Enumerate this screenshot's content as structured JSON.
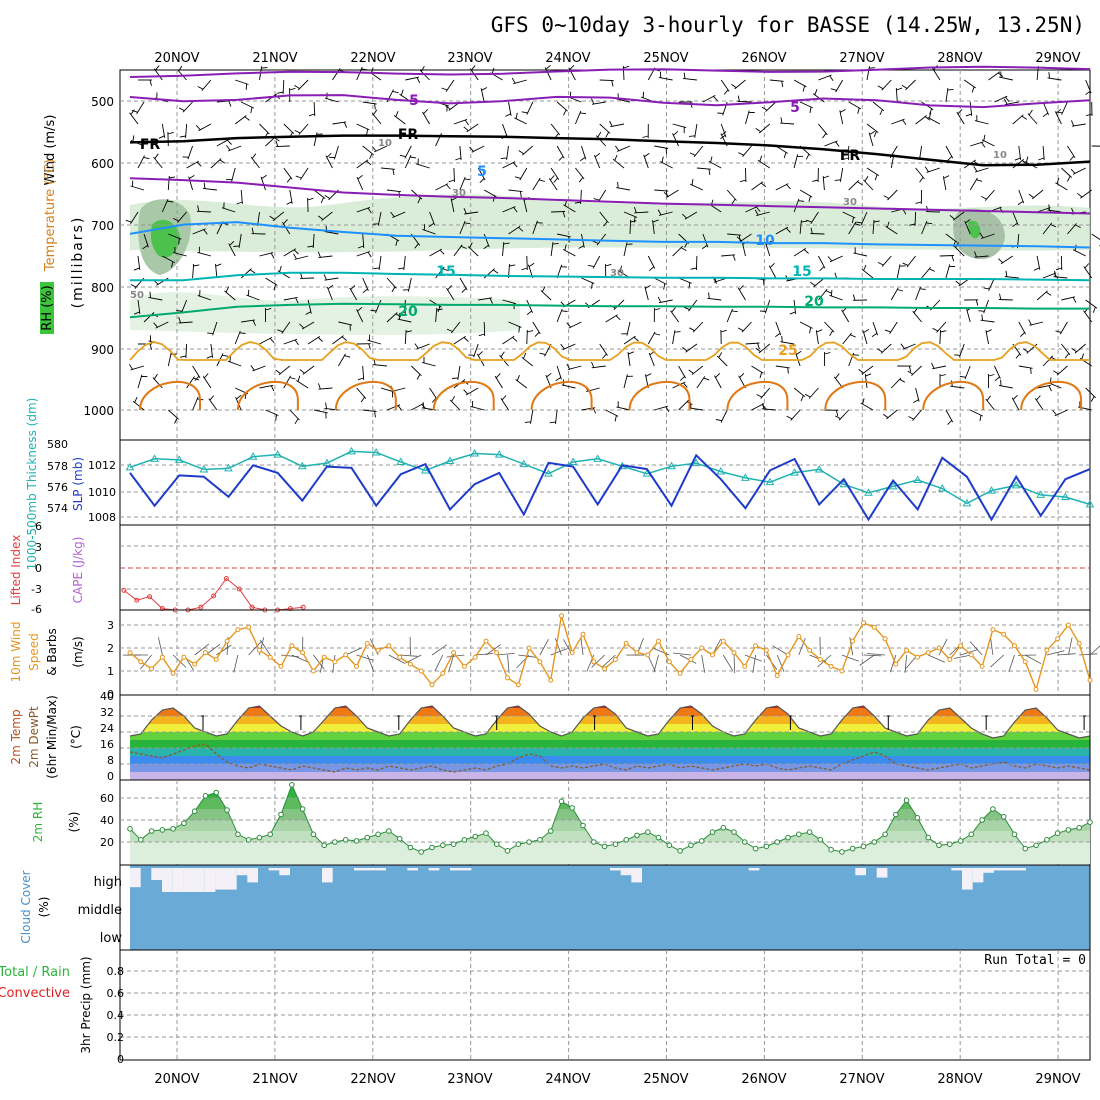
{
  "title": "GFS 0~10day 3-hourly for BASSE (14.25W, 13.25N)",
  "dates": [
    "20NOV",
    "21NOV",
    "22NOV",
    "23NOV",
    "24NOV",
    "25NOV",
    "26NOV",
    "27NOV",
    "28NOV",
    "29NOV"
  ],
  "colors": {
    "background": "#ffffff",
    "grid": "#999999",
    "text": "#000000",
    "temp_5": "#8a1eb4",
    "temp_10": "#1e90ff",
    "temp_15": "#00b4b4",
    "temp_20": "#00aa6e",
    "temp_25": "#e6a01e",
    "temp_30": "#e07814",
    "freezing": "#000000",
    "rh_fill": "#dcefdc",
    "thickness": "#20b2b2",
    "slp": "#1e3cc8",
    "lifted_index": "#e04040",
    "wind10m": "#e6961e",
    "dewpoint": "#8b5a2b",
    "rh2m": "#2db43c",
    "cloud_cover": "#6aaad6",
    "cloud_clear": "#f4f0f8",
    "precip_total": "#2db43c",
    "precip_convective": "#e02020"
  },
  "panels": {
    "upper": {
      "labels": [
        "Wind (m/s)",
        "Temperature (°C)",
        "RH (%)",
        "(millibars)"
      ],
      "yticks": [
        "500",
        "600",
        "700",
        "800",
        "900",
        "1000"
      ],
      "contour_labels": [
        "5",
        "5",
        "5",
        "10",
        "15",
        "15",
        "20",
        "20",
        "25",
        "10",
        "30",
        "30",
        "30",
        "50",
        "FR",
        "FR",
        "FR",
        "10"
      ]
    },
    "thickness": {
      "label_left": "1000-500mb Thickness (dm)",
      "label_right": "SLP (mb)",
      "yticks_left": [
        "580",
        "578",
        "576",
        "574"
      ],
      "yticks_right": [
        "1012",
        "1010",
        "1008"
      ]
    },
    "cape": {
      "label_left": "Lifted Index",
      "label_right": "CAPE (J/kg)",
      "yticks": [
        "6",
        "3",
        "0",
        "-3",
        "-6"
      ]
    },
    "wind10m": {
      "labels": [
        "10m Wind",
        "Speed",
        "& Barbs",
        "(m/s)"
      ],
      "yticks": [
        "3",
        "2",
        "1",
        "0"
      ]
    },
    "temp2m": {
      "labels": [
        "2m Temp",
        "2m DewPt",
        "(6hr Min/Max)",
        "(°C)"
      ],
      "yticks": [
        "40",
        "32",
        "24",
        "16",
        "8",
        "0"
      ]
    },
    "rh2m": {
      "labels": [
        "2m RH",
        "(%)"
      ],
      "yticks": [
        "60",
        "40",
        "20"
      ]
    },
    "cloud": {
      "labels": [
        "Cloud Cover",
        "(%)"
      ],
      "levels": [
        "high",
        "middle",
        "low"
      ]
    },
    "precip": {
      "labels": [
        "Total / Rain",
        "Convective",
        "3hr Precip (mm)"
      ],
      "yticks": [
        "0.8",
        "0.6",
        "0.4",
        "0.2",
        "0"
      ],
      "run_total": "Run Total = 0"
    }
  },
  "chart_data": [
    {
      "type": "heatmap",
      "title": "GFS 0~10day 3-hourly for BASSE (14.25W, 13.25N)",
      "ylabel": "millibars",
      "ylim": [
        1000,
        450
      ],
      "series": [
        {
          "name": "Temperature 5°C isotherm (mb)",
          "values": [
            625,
            628,
            632,
            640,
            648,
            652,
            655,
            657,
            660,
            663,
            666,
            668,
            670,
            672,
            674,
            676,
            678,
            680,
            682
          ]
        },
        {
          "name": "Temperature 10°C isotherm (mb)",
          "values": [
            715,
            700,
            696,
            705,
            712,
            718,
            720,
            722,
            724,
            726,
            728,
            728,
            730,
            730,
            732,
            733,
            734,
            735,
            737
          ]
        },
        {
          "name": "Temperature 15°C isotherm (mb)",
          "values": [
            790,
            790,
            782,
            778,
            778,
            780,
            781,
            783,
            784,
            785,
            786,
            786,
            787,
            787,
            788,
            788,
            788,
            789,
            790
          ]
        },
        {
          "name": "Temperature 20°C isotherm (mb)",
          "values": [
            850,
            842,
            833,
            830,
            828,
            829,
            830,
            830,
            831,
            832,
            832,
            833,
            833,
            834,
            834,
            835,
            835,
            836,
            836
          ]
        },
        {
          "name": "Freezing level (mb)",
          "values": [
            567,
            565,
            560,
            558,
            556,
            556,
            557,
            558,
            560,
            562,
            565,
            568,
            572,
            578,
            586,
            595,
            604,
            603,
            598
          ]
        }
      ]
    },
    {
      "type": "line",
      "ylabel": "Thickness (dm)",
      "x": [
        "19NOV18",
        "20NOV00",
        "20NOV06",
        "20NOV12",
        "20NOV18",
        "21NOV00",
        "21NOV06",
        "21NOV12",
        "21NOV18",
        "22NOV00",
        "22NOV06",
        "22NOV12",
        "22NOV18",
        "23NOV00",
        "23NOV06",
        "23NOV12",
        "23NOV18",
        "24NOV00",
        "24NOV06",
        "24NOV12",
        "24NOV18",
        "25NOV00",
        "25NOV06",
        "25NOV12",
        "25NOV18",
        "26NOV00",
        "26NOV06",
        "26NOV12",
        "26NOV18",
        "27NOV00",
        "27NOV06",
        "27NOV12",
        "27NOV18",
        "28NOV00",
        "28NOV06",
        "28NOV12",
        "28NOV18",
        "29NOV00",
        "29NOV06",
        "29NOV12"
      ],
      "series": [
        {
          "name": "1000-500mb Thickness (dm)",
          "values": [
            577.8,
            578.6,
            578.5,
            577.6,
            577.7,
            578.8,
            579.0,
            577.9,
            578.2,
            579.3,
            579.2,
            578.3,
            577.5,
            578.4,
            579.1,
            579.0,
            578.1,
            577.2,
            578.3,
            578.6,
            577.9,
            577.2,
            577.9,
            578.2,
            577.4,
            576.8,
            576.4,
            577.3,
            577.6,
            576.2,
            575.4,
            576.0,
            576.6,
            575.8,
            574.4,
            575.6,
            576.1,
            575.2,
            575.0,
            574.3
          ]
        },
        {
          "name": "SLP (mb)",
          "values": [
            1011.5,
            1008.9,
            1011.3,
            1011.2,
            1009.6,
            1012.1,
            1011.5,
            1009.3,
            1012.0,
            1011.9,
            1008.9,
            1011.4,
            1012.2,
            1008.6,
            1010.6,
            1011.5,
            1008.2,
            1012.3,
            1012.0,
            1009.0,
            1012.1,
            1011.8,
            1008.9,
            1012.9,
            1011.0,
            1008.7,
            1011.7,
            1012.6,
            1009.0,
            1011.0,
            1007.8,
            1010.9,
            1008.6,
            1012.7,
            1011.2,
            1007.8,
            1011.2,
            1008.1,
            1011.0,
            1011.8
          ]
        }
      ],
      "ylim": [
        573,
        580
      ]
    },
    {
      "type": "line",
      "ylabel": "Lifted Index",
      "x": [
        "19NOV12",
        "19NOV15",
        "19NOV18",
        "19NOV21",
        "20NOV00",
        "20NOV03",
        "20NOV06",
        "20NOV09",
        "20NOV12",
        "20NOV15",
        "20NOV18",
        "21NOV00",
        "21NOV03",
        "21NOV06",
        "21NOV09"
      ],
      "series": [
        {
          "name": "Lifted Index",
          "values": [
            3.2,
            4.6,
            4.1,
            5.8,
            6.0,
            6.0,
            5.6,
            4.0,
            1.5,
            3.0,
            5.6,
            6.0,
            6.0,
            5.8,
            5.6
          ]
        }
      ],
      "ylim": [
        6,
        -6
      ]
    },
    {
      "type": "line",
      "ylabel": "10m Wind Speed (m/s)",
      "series": [
        {
          "name": "10m Wind Speed",
          "values": [
            1.8,
            1.4,
            1.1,
            1.6,
            0.9,
            1.6,
            1.3,
            1.8,
            1.5,
            2.3,
            2.8,
            2.9,
            1.9,
            1.6,
            1.2,
            2.1,
            1.8,
            1.0,
            1.6,
            1.4,
            1.7,
            1.2,
            2.2,
            1.9,
            2.1,
            1.6,
            1.3,
            1.0,
            0.4,
            0.9,
            1.8,
            1.2,
            1.6,
            2.3,
            1.8,
            0.7,
            0.4,
            2.0,
            1.4,
            0.6,
            3.4,
            1.8,
            2.6,
            1.4,
            1.1,
            1.5,
            2.2,
            1.8,
            1.7,
            2.3,
            1.4,
            0.9,
            1.5,
            2.0,
            1.7,
            2.3,
            1.8,
            1.2,
            2.1,
            1.9,
            0.8,
            1.7,
            2.5,
            1.9,
            1.5,
            1.2,
            1.0,
            2.3,
            3.1,
            2.9,
            2.4,
            1.3,
            1.9,
            1.6,
            1.8,
            2.0,
            1.5,
            2.1,
            1.7,
            1.2,
            2.8,
            2.6,
            2.1,
            1.4,
            0.2,
            1.9,
            2.4,
            3.0,
            2.2,
            0.6
          ]
        }
      ],
      "ylim": [
        0,
        3.5
      ]
    },
    {
      "type": "area",
      "ylabel": "2m Temp (°C)",
      "series": [
        {
          "name": "2m Temperature",
          "values": [
            22,
            23,
            30,
            35,
            36,
            32,
            26,
            24,
            22,
            23,
            30,
            36,
            37,
            32,
            27,
            24,
            22,
            24,
            30,
            36,
            37,
            32,
            26,
            24,
            22,
            23,
            30,
            36,
            37,
            32,
            26,
            24,
            22,
            23,
            30,
            36,
            37,
            33,
            27,
            24,
            22,
            24,
            31,
            36,
            37,
            33,
            26,
            24,
            22,
            23,
            30,
            36,
            37,
            33,
            27,
            24,
            22,
            23,
            30,
            36,
            37,
            33,
            26,
            24,
            22,
            23,
            30,
            36,
            37,
            32,
            26,
            24,
            22,
            23,
            30,
            35,
            36,
            31,
            26,
            23,
            21,
            22,
            29,
            35,
            36,
            31,
            25,
            23,
            21,
            22
          ]
        },
        {
          "name": "2m DewPt",
          "values": [
            14,
            13,
            12,
            11,
            13,
            15,
            17,
            18,
            13,
            9,
            7,
            6,
            8,
            7,
            6,
            5,
            7,
            6,
            5,
            4,
            6,
            5,
            6,
            5,
            7,
            6,
            5,
            6,
            7,
            5,
            4,
            5,
            6,
            5,
            7,
            8,
            11,
            13,
            12,
            7,
            6,
            7,
            6,
            7,
            8,
            6,
            5,
            7,
            6,
            7,
            8,
            6,
            7,
            6,
            5,
            6,
            7,
            8,
            7,
            8,
            6,
            5,
            6,
            7,
            6,
            5,
            8,
            10,
            12,
            14,
            12,
            8,
            7,
            6,
            5,
            6,
            7,
            8,
            6,
            7,
            8,
            9,
            7,
            6,
            8,
            7,
            6,
            7,
            6,
            5
          ]
        }
      ],
      "ylim": [
        0,
        40
      ]
    },
    {
      "type": "area",
      "ylabel": "2m RH (%)",
      "series": [
        {
          "name": "2m RH",
          "values": [
            32,
            22,
            30,
            31,
            32,
            37,
            48,
            62,
            65,
            49,
            27,
            22,
            24,
            27,
            45,
            72,
            50,
            27,
            17,
            20,
            22,
            21,
            24,
            27,
            30,
            23,
            15,
            11,
            15,
            17,
            18,
            22,
            25,
            28,
            18,
            12,
            18,
            20,
            22,
            30,
            57,
            51,
            35,
            20,
            16,
            18,
            22,
            26,
            29,
            24,
            17,
            12,
            17,
            21,
            29,
            33,
            29,
            20,
            14,
            16,
            20,
            24,
            27,
            29,
            22,
            13,
            11,
            14,
            16,
            20,
            27,
            45,
            58,
            42,
            24,
            17,
            18,
            21,
            27,
            40,
            50,
            43,
            27,
            14,
            17,
            22,
            28,
            31,
            33,
            38
          ]
        }
      ],
      "ylim": [
        0,
        70
      ]
    },
    {
      "type": "bar",
      "ylabel": "Cloud Cover (%)",
      "series": [
        {
          "name": "high cloud clear fraction",
          "values": [
            0.8,
            0.0,
            0.5,
            1.0,
            1.0,
            1.0,
            1.0,
            1.0,
            0.9,
            0.9,
            0.3,
            0.6,
            0.0,
            0.1,
            0.3,
            0.0,
            0.0,
            0.0,
            0.6,
            0.0,
            0.0,
            0.1,
            0.1,
            0.1,
            0.0,
            0.0,
            0.1,
            0.0,
            0.1,
            0.0,
            0.1,
            0.1,
            0.0,
            0.0,
            0.0,
            0.0,
            0.0,
            0.0,
            0.0,
            0.0,
            0.0,
            0.0,
            0.0,
            0.0,
            0.0,
            0.1,
            0.3,
            0.6,
            0.0,
            0.0,
            0.0,
            0.0,
            0.0,
            0.0,
            0.0,
            0.0,
            0.0,
            0.0,
            0.1,
            0.0,
            0.0,
            0.0,
            0.0,
            0.0,
            0.0,
            0.0,
            0.0,
            0.0,
            0.3,
            0.0,
            0.4,
            0.0,
            0.0,
            0.0,
            0.0,
            0.0,
            0.0,
            0.1,
            0.9,
            0.6,
            0.2,
            0.1,
            0.1,
            0.1,
            0.0,
            0.0,
            0.0,
            0.0,
            0.0,
            0.0
          ]
        }
      ],
      "ylim": [
        0,
        1
      ]
    },
    {
      "type": "bar",
      "ylabel": "3hr Precip (mm)",
      "series": [
        {
          "name": "Total / Rain",
          "values": [
            0,
            0,
            0,
            0,
            0,
            0,
            0,
            0,
            0,
            0
          ]
        },
        {
          "name": "Convective",
          "values": [
            0,
            0,
            0,
            0,
            0,
            0,
            0,
            0,
            0,
            0
          ]
        }
      ],
      "ylim": [
        0,
        1
      ]
    }
  ]
}
